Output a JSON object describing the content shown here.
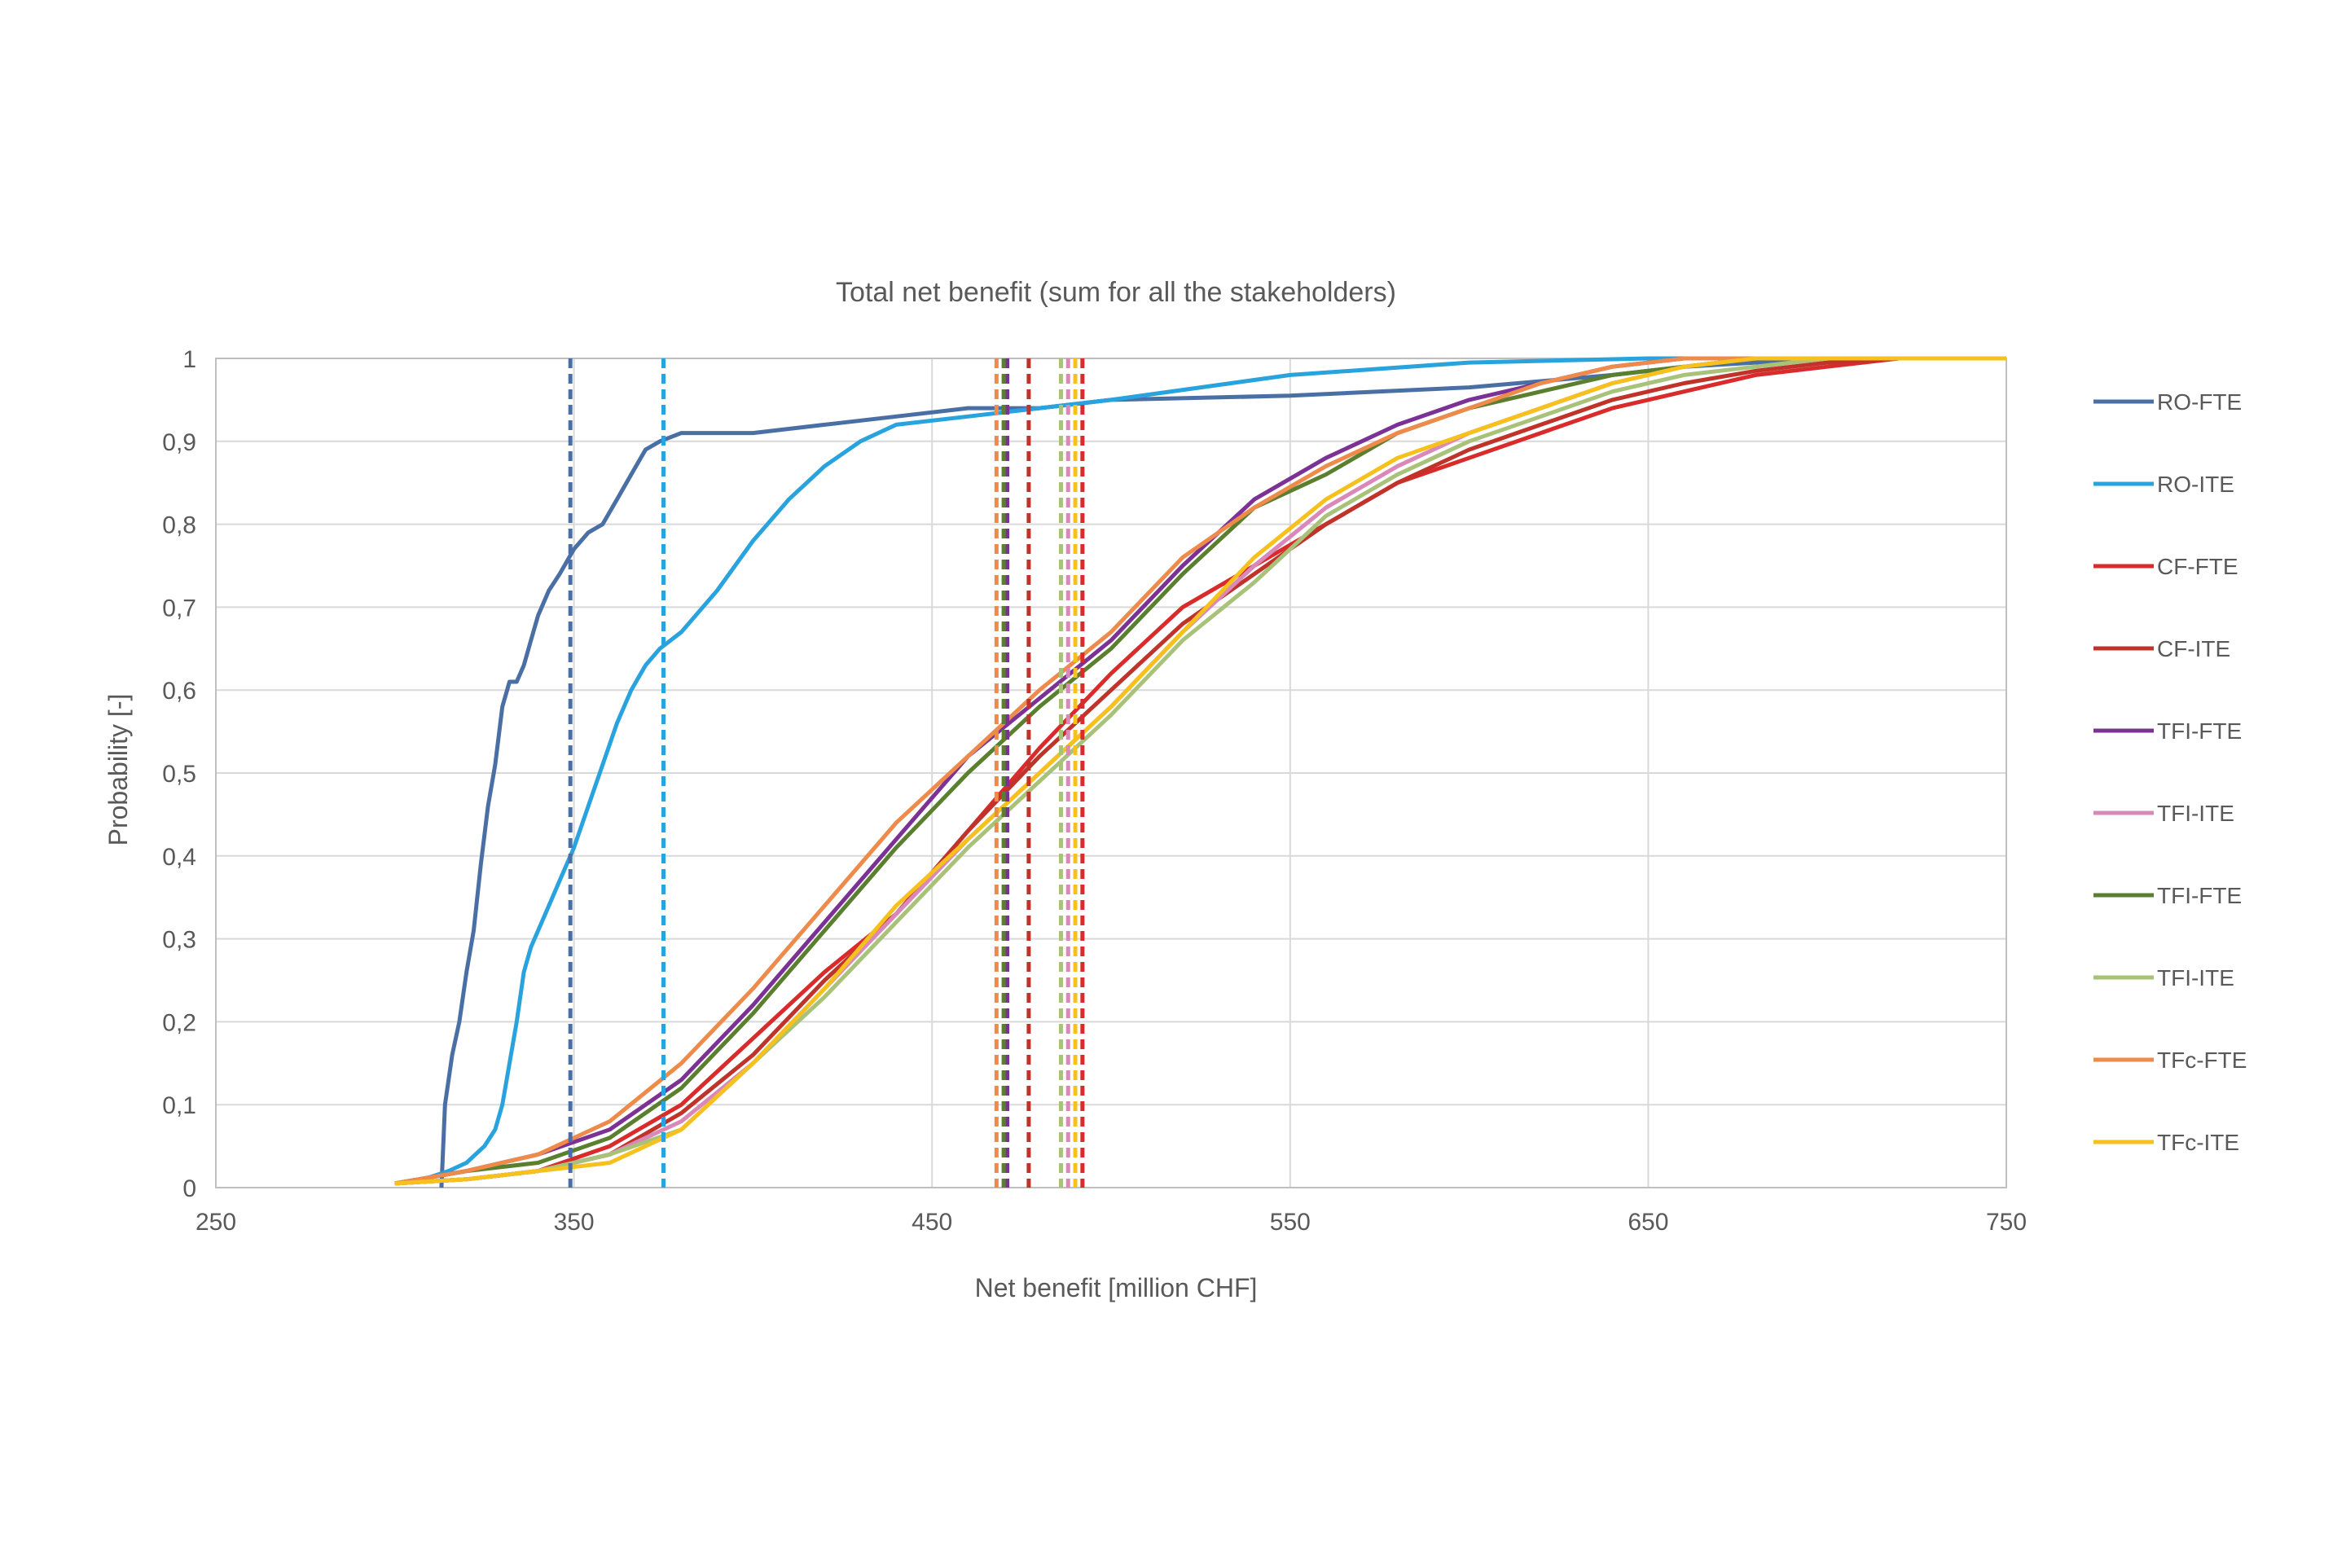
{
  "chart_data": {
    "type": "line",
    "title": "Total net benefit (sum for all the stakeholders)",
    "xlabel": "Net benefit [million CHF]",
    "ylabel": "Probability [-]",
    "xlim": [
      250,
      750
    ],
    "ylim": [
      0,
      1
    ],
    "x_ticks": [
      "250",
      "350",
      "450",
      "550",
      "650",
      "750"
    ],
    "y_ticks": [
      "0",
      "0,1",
      "0,2",
      "0,3",
      "0,4",
      "0,5",
      "0,6",
      "0,7",
      "0,8",
      "0,9",
      "1"
    ],
    "grid": true,
    "legend_position": "right",
    "series": [
      {
        "name": "RO-FTE",
        "color": "#4a6fa5",
        "mean": 349,
        "x": [
          313,
          314,
          316,
          318,
          320,
          322,
          324,
          326,
          328,
          330,
          332,
          334,
          336,
          338,
          340,
          343,
          346,
          350,
          354,
          358,
          362,
          366,
          370,
          374,
          380,
          400,
          420,
          440,
          460,
          480,
          500,
          550,
          600,
          640,
          660,
          680,
          700,
          750
        ],
        "y": [
          0.0,
          0.1,
          0.16,
          0.2,
          0.26,
          0.31,
          0.39,
          0.46,
          0.51,
          0.58,
          0.61,
          0.61,
          0.63,
          0.66,
          0.69,
          0.72,
          0.74,
          0.77,
          0.79,
          0.8,
          0.83,
          0.86,
          0.89,
          0.9,
          0.91,
          0.91,
          0.92,
          0.93,
          0.94,
          0.94,
          0.95,
          0.955,
          0.965,
          0.98,
          0.99,
          0.995,
          1.0,
          1.0
        ]
      },
      {
        "name": "RO-ITE",
        "color": "#29a3dd",
        "mean": 375,
        "x": [
          308,
          315,
          320,
          325,
          328,
          330,
          332,
          334,
          336,
          338,
          342,
          346,
          350,
          354,
          358,
          362,
          366,
          370,
          374,
          380,
          390,
          400,
          410,
          420,
          430,
          440,
          460,
          480,
          500,
          550,
          600,
          650,
          680,
          750
        ],
        "y": [
          0.01,
          0.02,
          0.03,
          0.05,
          0.07,
          0.1,
          0.15,
          0.2,
          0.26,
          0.29,
          0.33,
          0.37,
          0.41,
          0.46,
          0.51,
          0.56,
          0.6,
          0.63,
          0.65,
          0.67,
          0.72,
          0.78,
          0.83,
          0.87,
          0.9,
          0.92,
          0.93,
          0.94,
          0.95,
          0.98,
          0.995,
          1.0,
          1.0,
          1.0
        ]
      },
      {
        "name": "CF-FTE",
        "color": "#d92b2b",
        "mean": 492,
        "x": [
          300,
          320,
          340,
          360,
          380,
          400,
          420,
          440,
          460,
          480,
          500,
          520,
          540,
          560,
          580,
          600,
          620,
          640,
          660,
          680,
          700,
          720,
          750
        ],
        "y": [
          0.005,
          0.01,
          0.02,
          0.05,
          0.1,
          0.18,
          0.26,
          0.33,
          0.43,
          0.53,
          0.62,
          0.7,
          0.75,
          0.8,
          0.85,
          0.88,
          0.91,
          0.94,
          0.96,
          0.98,
          0.99,
          1.0,
          1.0
        ]
      },
      {
        "name": "CF-ITE",
        "color": "#c0332b",
        "mean": 477,
        "x": [
          300,
          320,
          340,
          360,
          380,
          400,
          420,
          440,
          460,
          480,
          500,
          520,
          540,
          560,
          580,
          600,
          620,
          640,
          660,
          680,
          700,
          720,
          750
        ],
        "y": [
          0.005,
          0.01,
          0.02,
          0.04,
          0.09,
          0.16,
          0.25,
          0.33,
          0.43,
          0.52,
          0.6,
          0.68,
          0.74,
          0.8,
          0.85,
          0.89,
          0.92,
          0.95,
          0.97,
          0.985,
          0.995,
          1.0,
          1.0
        ]
      },
      {
        "name": "TFI-FTE",
        "color": "#7b3294",
        "mean": 471,
        "x": [
          300,
          320,
          340,
          360,
          380,
          400,
          420,
          440,
          460,
          480,
          500,
          520,
          540,
          560,
          580,
          600,
          620,
          640,
          660,
          680,
          700,
          750
        ],
        "y": [
          0.005,
          0.02,
          0.04,
          0.07,
          0.13,
          0.22,
          0.32,
          0.42,
          0.52,
          0.59,
          0.66,
          0.75,
          0.83,
          0.88,
          0.92,
          0.95,
          0.97,
          0.99,
          1.0,
          1.0,
          1.0,
          1.0
        ]
      },
      {
        "name": "TFI-ITE",
        "color": "#d988b9",
        "mean": 488,
        "x": [
          300,
          320,
          340,
          360,
          380,
          400,
          420,
          440,
          460,
          480,
          500,
          520,
          540,
          560,
          580,
          600,
          620,
          640,
          660,
          680,
          700,
          750
        ],
        "y": [
          0.005,
          0.01,
          0.02,
          0.04,
          0.08,
          0.15,
          0.24,
          0.33,
          0.42,
          0.5,
          0.58,
          0.67,
          0.75,
          0.82,
          0.87,
          0.91,
          0.94,
          0.97,
          0.99,
          1.0,
          1.0,
          1.0
        ]
      },
      {
        "name": "TFI-FTE",
        "color": "#5a7f2e",
        "mean": 470,
        "x": [
          300,
          320,
          340,
          360,
          380,
          400,
          420,
          440,
          460,
          480,
          500,
          520,
          540,
          560,
          580,
          600,
          620,
          640,
          660,
          680,
          700,
          750
        ],
        "y": [
          0.005,
          0.02,
          0.03,
          0.06,
          0.12,
          0.21,
          0.31,
          0.41,
          0.5,
          0.58,
          0.65,
          0.74,
          0.82,
          0.86,
          0.91,
          0.94,
          0.96,
          0.98,
          0.99,
          1.0,
          1.0,
          1.0
        ]
      },
      {
        "name": "TFI-ITE",
        "color": "#a9c27a",
        "mean": 486,
        "x": [
          300,
          320,
          340,
          360,
          380,
          400,
          420,
          440,
          460,
          480,
          500,
          520,
          540,
          560,
          580,
          600,
          620,
          640,
          660,
          680,
          700,
          750
        ],
        "y": [
          0.005,
          0.01,
          0.02,
          0.04,
          0.07,
          0.15,
          0.23,
          0.32,
          0.41,
          0.49,
          0.57,
          0.66,
          0.73,
          0.81,
          0.86,
          0.9,
          0.93,
          0.96,
          0.98,
          0.99,
          1.0,
          1.0
        ]
      },
      {
        "name": "TFc-FTE",
        "color": "#ee8a4a",
        "mean": 468,
        "x": [
          300,
          320,
          340,
          360,
          380,
          400,
          420,
          440,
          460,
          480,
          500,
          520,
          540,
          560,
          580,
          600,
          620,
          640,
          660,
          680,
          700,
          750
        ],
        "y": [
          0.005,
          0.02,
          0.04,
          0.08,
          0.15,
          0.24,
          0.34,
          0.44,
          0.52,
          0.6,
          0.67,
          0.76,
          0.82,
          0.87,
          0.91,
          0.94,
          0.97,
          0.99,
          1.0,
          1.0,
          1.0,
          1.0
        ]
      },
      {
        "name": "TFc-ITE",
        "color": "#f6c11d",
        "mean": 490,
        "x": [
          300,
          320,
          340,
          360,
          380,
          400,
          420,
          440,
          460,
          480,
          500,
          520,
          540,
          560,
          580,
          600,
          620,
          640,
          660,
          680,
          700,
          750
        ],
        "y": [
          0.005,
          0.01,
          0.02,
          0.03,
          0.07,
          0.15,
          0.24,
          0.34,
          0.42,
          0.5,
          0.58,
          0.67,
          0.76,
          0.83,
          0.88,
          0.91,
          0.94,
          0.97,
          0.99,
          1.0,
          1.0,
          1.0
        ]
      }
    ]
  }
}
